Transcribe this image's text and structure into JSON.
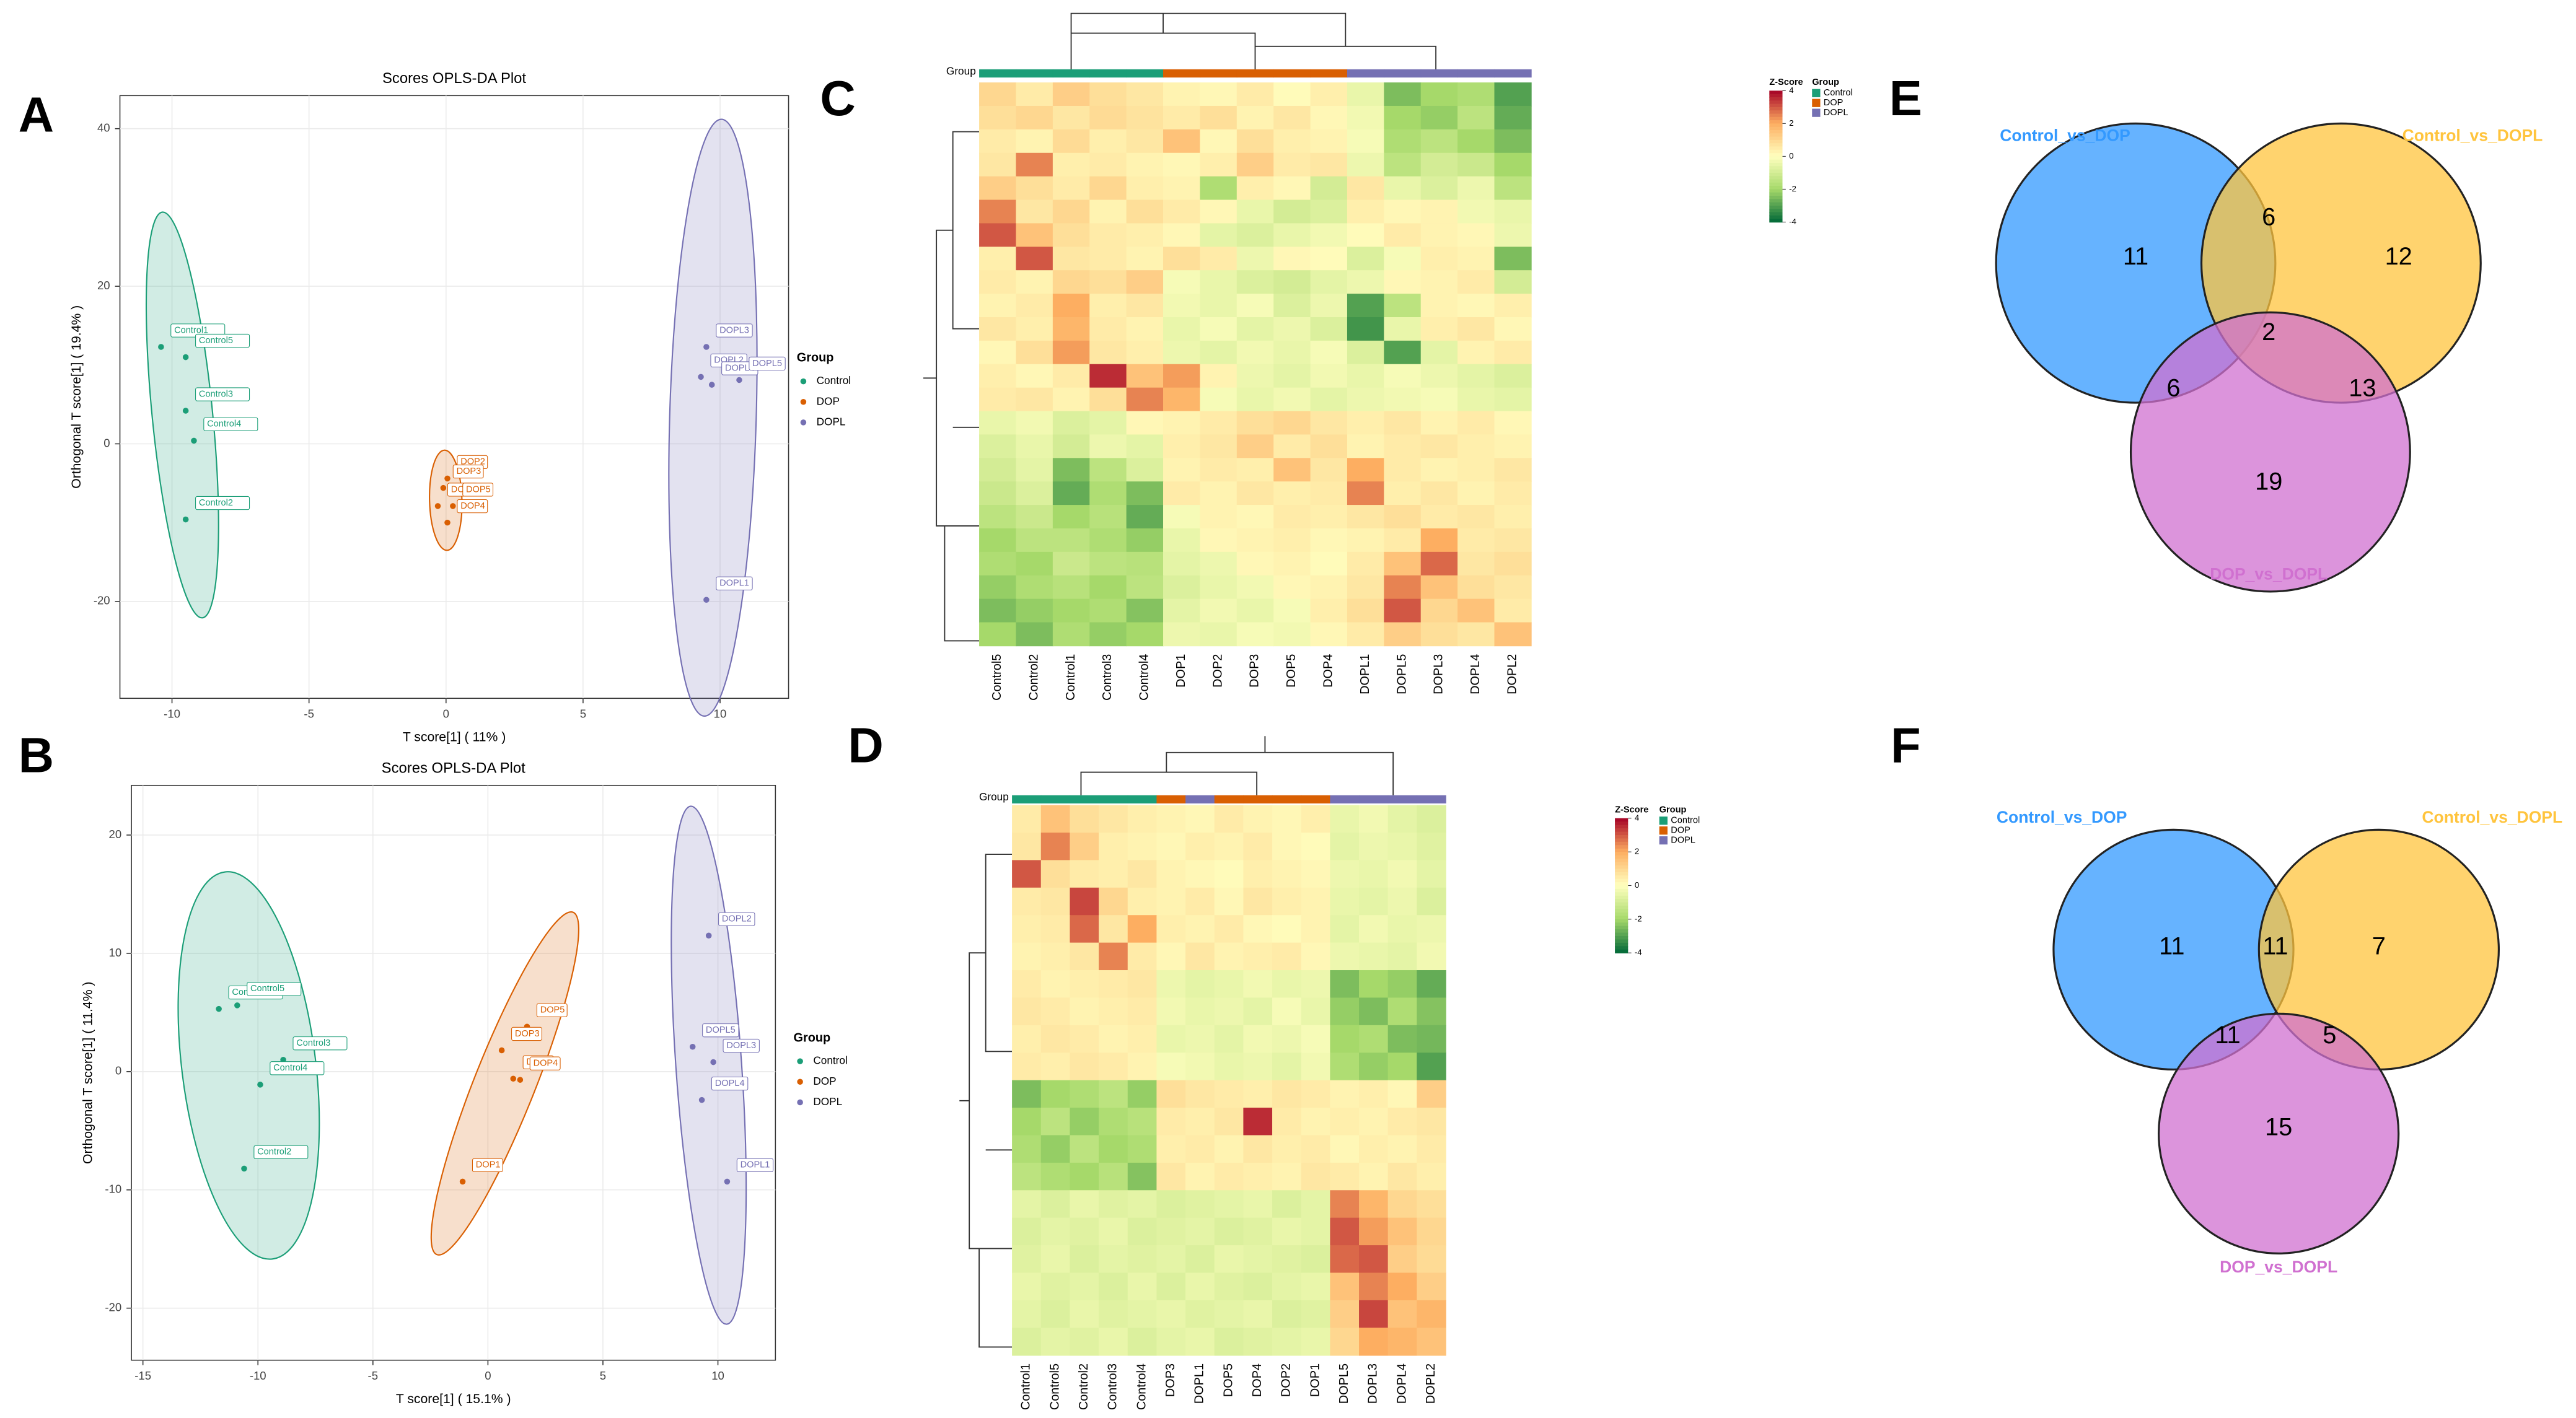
{
  "chart_data": [
    {
      "type": "scatter",
      "panel": "A",
      "title": "Scores OPLS-DA Plot",
      "xlabel": "T score[1] ( 11% )",
      "ylabel": "Orthogonal T score[1] ( 19.4% )",
      "xlim": [
        -11.9,
        12.5
      ],
      "ylim": [
        -32.3,
        44.2
      ],
      "xticks": [
        -10,
        -5,
        0,
        5,
        10
      ],
      "yticks": [
        -20,
        0,
        20,
        40
      ],
      "grid": true,
      "legend_title": "Group",
      "series": [
        {
          "name": "Control",
          "color": "#1b9e77",
          "x": [
            -10.4,
            -9.5,
            -9.5,
            -9.2,
            -9.5
          ],
          "values": [
            12.3,
            11,
            4.2,
            0.4,
            -9.6
          ],
          "point_labels": [
            "Control1",
            "Control5",
            "Control3",
            "Control4",
            "Control2"
          ]
        },
        {
          "name": "DOP",
          "color": "#d95f02",
          "x": [
            0.05,
            -0.1,
            -0.3,
            0.25,
            0.05
          ],
          "values": [
            -4.4,
            -5.6,
            -7.9,
            -7.9,
            -10
          ],
          "point_labels": [
            "DOP2",
            "DOP3",
            "DOP1",
            "DOP5",
            "DOP4"
          ]
        },
        {
          "name": "DOPL",
          "color": "#7570b3",
          "x": [
            9.5,
            9.3,
            9.7,
            10.7,
            9.5
          ],
          "values": [
            12.3,
            8.5,
            7.5,
            8.1,
            -19.8
          ],
          "point_labels": [
            "DOPL3",
            "DOPL2",
            "DOPL4",
            "DOPL5",
            "DOPL1"
          ]
        }
      ]
    },
    {
      "type": "heatmap",
      "panel": "C",
      "group_label": "Group",
      "zlabel": "Z-Score",
      "legend_title": "Group",
      "zlim": [
        -4,
        4
      ],
      "zticks": [
        4,
        2,
        0,
        -2,
        -4
      ],
      "groups": [
        {
          "name": "Control",
          "color": "#1b9e77"
        },
        {
          "name": "DOP",
          "color": "#d95f02"
        },
        {
          "name": "DOPL",
          "color": "#7570b3"
        }
      ],
      "columns": [
        "Control5",
        "Control2",
        "Control1",
        "Control3",
        "Control4",
        "DOP1",
        "DOP2",
        "DOP3",
        "DOP5",
        "DOP4",
        "DOPL1",
        "DOPL5",
        "DOPL3",
        "DOPL4",
        "DOPL2"
      ],
      "column_groups": [
        0,
        0,
        0,
        0,
        0,
        1,
        1,
        1,
        1,
        1,
        2,
        2,
        2,
        2,
        2
      ],
      "values": [
        [
          1,
          0.5,
          1.2,
          0.8,
          0.6,
          0.3,
          0.2,
          0.5,
          0.1,
          0.4,
          -0.5,
          -2.5,
          -2,
          -1.8,
          -3
        ],
        [
          0.8,
          1,
          0.6,
          0.9,
          0.7,
          0.5,
          0.8,
          0.3,
          0.6,
          0.2,
          -0.3,
          -2,
          -2.2,
          -1.5,
          -2.8
        ],
        [
          0.5,
          0.3,
          0.9,
          0.4,
          0.6,
          1.5,
          0.2,
          0.8,
          0.4,
          0.3,
          -0.2,
          -1.8,
          -1.5,
          -2,
          -2.5
        ],
        [
          0.6,
          2.5,
          0.4,
          0.5,
          0.3,
          0.2,
          0.4,
          1.2,
          0.5,
          0.6,
          -0.4,
          -1.5,
          -1,
          -1.2,
          -2
        ],
        [
          1.2,
          0.8,
          0.5,
          1,
          0.4,
          0.3,
          -1.8,
          0.4,
          0.2,
          -1,
          0.6,
          -0.5,
          -0.8,
          -0.4,
          -1.5
        ],
        [
          2.5,
          0.6,
          1,
          0.3,
          0.8,
          0.5,
          0.2,
          -0.5,
          -1,
          -0.8,
          0.4,
          0.2,
          0.3,
          -0.3,
          -0.5
        ],
        [
          3,
          1.5,
          0.8,
          0.5,
          0.4,
          0.2,
          -0.6,
          -0.8,
          -0.5,
          -0.3,
          0.1,
          0.5,
          0.3,
          0.2,
          -0.4
        ],
        [
          0.4,
          3,
          0.6,
          0.5,
          0.3,
          0.8,
          0.5,
          -0.4,
          0.2,
          0.1,
          -0.8,
          -0.2,
          0.4,
          0.3,
          -2.5
        ],
        [
          0.5,
          0.3,
          1,
          0.8,
          1.2,
          -0.2,
          -0.5,
          -0.8,
          -1,
          -0.6,
          -0.4,
          0.2,
          0.3,
          0.5,
          -1
        ],
        [
          0.3,
          0.5,
          2,
          0.4,
          0.6,
          -0.3,
          -0.5,
          -0.2,
          -0.8,
          -0.4,
          -3,
          -1.5,
          0.3,
          0.2,
          0.4
        ],
        [
          0.6,
          0.4,
          1.8,
          0.5,
          0.3,
          -0.5,
          -0.2,
          -0.6,
          -0.4,
          -0.8,
          -3.2,
          -0.5,
          0.4,
          0.6,
          0.2
        ],
        [
          0.2,
          0.8,
          2.2,
          0.6,
          0.4,
          -0.4,
          -0.6,
          -0.3,
          -0.5,
          -0.2,
          -0.8,
          -3,
          -0.6,
          0.3,
          0.5
        ],
        [
          0.4,
          0.2,
          0.5,
          3.5,
          1.5,
          2.2,
          0.3,
          -0.4,
          -0.6,
          -0.3,
          -0.5,
          -0.2,
          -0.4,
          -0.6,
          -0.8
        ],
        [
          0.5,
          0.6,
          0.3,
          0.8,
          2.5,
          1.8,
          -0.2,
          -0.5,
          -0.3,
          -0.6,
          -0.4,
          -0.3,
          -0.2,
          -0.5,
          -0.6
        ],
        [
          -0.5,
          -0.3,
          -0.8,
          -0.6,
          0.2,
          0.3,
          0.5,
          0.8,
          1,
          0.6,
          0.4,
          0.6,
          0.3,
          0.5,
          0.2
        ],
        [
          -0.8,
          -0.5,
          -1,
          -0.4,
          -0.6,
          0.4,
          0.6,
          1.2,
          0.5,
          0.8,
          0.3,
          0.5,
          0.6,
          0.4,
          0.3
        ],
        [
          -1,
          -0.6,
          -2.5,
          -1.5,
          -0.8,
          0.3,
          0.5,
          0.4,
          1.5,
          0.6,
          2,
          0.5,
          0.3,
          0.4,
          0.6
        ],
        [
          -1.2,
          -0.8,
          -2.8,
          -1.8,
          -2.5,
          0.5,
          0.3,
          0.6,
          0.4,
          0.5,
          2.5,
          0.4,
          0.6,
          0.3,
          0.5
        ],
        [
          -1.5,
          -1.2,
          -2,
          -1.6,
          -2.8,
          -0.2,
          0.3,
          0.2,
          0.5,
          0.4,
          0.6,
          0.8,
          0.5,
          0.6,
          0.4
        ],
        [
          -2,
          -1.5,
          -1.5,
          -1.8,
          -2.2,
          -0.5,
          0.2,
          0.3,
          0.4,
          0.2,
          0.3,
          0.5,
          2,
          0.5,
          0.6
        ],
        [
          -1.8,
          -2,
          -1.2,
          -1.5,
          -1.6,
          -0.6,
          -0.4,
          0.2,
          0.3,
          0.1,
          0.5,
          1.5,
          2.8,
          0.6,
          0.8
        ],
        [
          -2.2,
          -1.8,
          -1.6,
          -2,
          -1.5,
          -0.8,
          -0.5,
          -0.3,
          0.2,
          0.3,
          0.6,
          2.5,
          1.5,
          0.8,
          0.6
        ],
        [
          -2.5,
          -2.2,
          -2,
          -1.8,
          -2.4,
          -0.6,
          -0.3,
          -0.5,
          -0.2,
          0.4,
          0.8,
          3,
          1,
          1.5,
          0.5
        ],
        [
          -2,
          -2.5,
          -1.8,
          -2.2,
          -2,
          -0.4,
          -0.5,
          -0.2,
          -0.3,
          0.2,
          0.5,
          1.2,
          0.8,
          0.6,
          1.5
        ]
      ]
    },
    {
      "type": "venn",
      "panel": "E",
      "sets": [
        {
          "name": "Control_vs_DOP",
          "color": "#3399ff"
        },
        {
          "name": "Control_vs_DOPL",
          "color": "#ffc43d"
        },
        {
          "name": "DOP_vs_DOPL",
          "color": "#d070d0"
        }
      ],
      "regions": [
        {
          "sets": [
            0
          ],
          "value": 11
        },
        {
          "sets": [
            0,
            1
          ],
          "value": 6
        },
        {
          "sets": [
            1
          ],
          "value": 12
        },
        {
          "sets": [
            0,
            1,
            2
          ],
          "value": 2
        },
        {
          "sets": [
            0,
            2
          ],
          "value": 6
        },
        {
          "sets": [
            1,
            2
          ],
          "value": 13
        },
        {
          "sets": [
            2
          ],
          "value": 19
        }
      ]
    },
    {
      "type": "scatter",
      "panel": "B",
      "title": "Scores OPLS-DA Plot",
      "xlabel": "T score[1] ( 15.1% )",
      "ylabel": "Orthogonal T score[1] ( 11.4% )",
      "xlim": [
        -15.5,
        12.5
      ],
      "ylim": [
        -24.4,
        24.2
      ],
      "xticks": [
        -15,
        -10,
        -5,
        0,
        5,
        10
      ],
      "yticks": [
        -20,
        -10,
        0,
        10,
        20
      ],
      "grid": true,
      "legend_title": "Group",
      "series": [
        {
          "name": "Control",
          "color": "#1b9e77",
          "x": [
            -11.7,
            -10.9,
            -8.9,
            -9.9,
            -10.6
          ],
          "values": [
            5.3,
            5.6,
            1,
            -1.1,
            -8.2
          ],
          "point_labels": [
            "Control1",
            "Control5",
            "Control3",
            "Control4",
            "Control2"
          ]
        },
        {
          "name": "DOP",
          "color": "#d95f02",
          "x": [
            1.7,
            0.6,
            1.1,
            1.4,
            -1.1
          ],
          "values": [
            3.8,
            1.8,
            -0.6,
            -0.7,
            -9.3
          ],
          "point_labels": [
            "DOP5",
            "DOP3",
            "DOP2",
            "DOP4",
            "DOP1"
          ]
        },
        {
          "name": "DOPL",
          "color": "#7570b3",
          "x": [
            9.6,
            8.9,
            9.8,
            9.3,
            10.4
          ],
          "values": [
            11.5,
            2.1,
            0.8,
            -2.4,
            -9.3
          ],
          "point_labels": [
            "DOPL2",
            "DOPL5",
            "DOPL3",
            "DOPL4",
            "DOPL1"
          ]
        }
      ]
    },
    {
      "type": "heatmap",
      "panel": "D",
      "group_label": "Group",
      "zlabel": "Z-Score",
      "legend_title": "Group",
      "zlim": [
        -4,
        4
      ],
      "zticks": [
        4,
        2,
        0,
        -2,
        -4
      ],
      "groups": [
        {
          "name": "Control",
          "color": "#1b9e77"
        },
        {
          "name": "DOP",
          "color": "#d95f02"
        },
        {
          "name": "DOPL",
          "color": "#7570b3"
        }
      ],
      "columns": [
        "Control1",
        "Control5",
        "Control2",
        "Control3",
        "Control4",
        "DOP3",
        "DOPL1",
        "DOP5",
        "DOP4",
        "DOP2",
        "DOP1",
        "DOPL5",
        "DOPL3",
        "DOPL4",
        "DOPL2"
      ],
      "column_groups": [
        0,
        0,
        0,
        0,
        0,
        1,
        2,
        1,
        1,
        1,
        1,
        2,
        2,
        2,
        2
      ],
      "values": [
        [
          0.5,
          1.5,
          0.8,
          0.6,
          0.4,
          0.3,
          0.2,
          0.5,
          0.3,
          0.2,
          0.4,
          -0.5,
          -0.3,
          -0.6,
          -0.8
        ],
        [
          0.6,
          2.5,
          1.2,
          0.4,
          0.3,
          0.2,
          0.4,
          0.3,
          0.5,
          0.2,
          0.1,
          -0.6,
          -0.4,
          -0.5,
          -0.7
        ],
        [
          3,
          0.8,
          0.5,
          0.4,
          0.6,
          0.3,
          0.2,
          0.1,
          0.4,
          0.3,
          0.2,
          -0.4,
          -0.5,
          -0.3,
          -0.6
        ],
        [
          0.5,
          0.6,
          3.2,
          1,
          0.4,
          0.3,
          0.5,
          0.2,
          0.6,
          0.4,
          0.3,
          -0.5,
          -0.6,
          -0.4,
          -0.8
        ],
        [
          0.4,
          0.5,
          2.8,
          0.6,
          2,
          0.4,
          0.3,
          0.5,
          0.2,
          0.1,
          0.3,
          -0.6,
          -0.3,
          -0.5,
          -0.4
        ],
        [
          0.3,
          0.4,
          0.6,
          2.5,
          0.5,
          0.2,
          0.6,
          0.3,
          0.4,
          0.5,
          0.2,
          -0.4,
          -0.5,
          -0.6,
          -0.3
        ],
        [
          0.5,
          0.3,
          0.4,
          0.5,
          0.6,
          -0.4,
          -0.6,
          -0.5,
          -0.3,
          -0.5,
          -0.4,
          -2.5,
          -2,
          -2.2,
          -2.8
        ],
        [
          0.6,
          0.5,
          0.3,
          0.4,
          0.5,
          -0.3,
          -0.5,
          -0.4,
          -0.6,
          -0.2,
          -0.5,
          -2.2,
          -2.5,
          -1.8,
          -2.4
        ],
        [
          0.4,
          0.6,
          0.5,
          0.3,
          0.4,
          -0.5,
          -0.4,
          -0.6,
          -0.3,
          -0.4,
          -0.2,
          -2,
          -1.8,
          -2.5,
          -2.6
        ],
        [
          0.5,
          0.4,
          0.6,
          0.5,
          0.3,
          -0.2,
          -0.3,
          -0.5,
          -0.4,
          -0.6,
          -0.3,
          -1.8,
          -2.2,
          -2,
          -3
        ],
        [
          -2.5,
          -2,
          -1.8,
          -1.5,
          -2.2,
          0.8,
          0.6,
          0.5,
          0.4,
          0.6,
          0.5,
          0.3,
          0.4,
          0.2,
          1.2
        ],
        [
          -2,
          -1.5,
          -2.2,
          -1.8,
          -1.6,
          0.5,
          0.4,
          0.6,
          3.5,
          0.5,
          0.3,
          0.4,
          0.3,
          0.5,
          0.6
        ],
        [
          -1.8,
          -2.2,
          -1.5,
          -2,
          -1.8,
          0.4,
          0.5,
          0.3,
          0.6,
          0.4,
          0.5,
          0.2,
          0.4,
          0.3,
          0.5
        ],
        [
          -1.5,
          -1.8,
          -2,
          -1.6,
          -2.4,
          0.6,
          0.3,
          0.5,
          0.4,
          0.3,
          0.6,
          0.5,
          0.3,
          0.6,
          0.4
        ],
        [
          -0.6,
          -0.8,
          -0.5,
          -0.7,
          -0.6,
          -0.8,
          -0.7,
          -0.6,
          -0.5,
          -0.8,
          -0.6,
          2.5,
          1.8,
          1,
          0.8
        ],
        [
          -0.8,
          -0.6,
          -0.7,
          -0.5,
          -0.8,
          -0.7,
          -0.6,
          -0.8,
          -0.7,
          -0.5,
          -0.6,
          3,
          2.2,
          1.5,
          1
        ],
        [
          -0.7,
          -0.5,
          -0.8,
          -0.6,
          -0.7,
          -0.6,
          -0.8,
          -0.5,
          -0.6,
          -0.7,
          -0.8,
          2.8,
          3,
          1.2,
          0.9
        ],
        [
          -0.5,
          -0.7,
          -0.6,
          -0.8,
          -0.5,
          -0.8,
          -0.5,
          -0.7,
          -0.8,
          -0.6,
          -0.5,
          1.5,
          2.5,
          2,
          1.2
        ],
        [
          -0.6,
          -0.8,
          -0.5,
          -0.7,
          -0.6,
          -0.5,
          -0.7,
          -0.6,
          -0.5,
          -0.8,
          -0.7,
          1.2,
          3.2,
          1.5,
          1.8
        ],
        [
          -0.8,
          -0.6,
          -0.7,
          -0.5,
          -0.8,
          -0.6,
          -0.5,
          -0.8,
          -0.7,
          -0.6,
          -0.5,
          1,
          2,
          1.8,
          1.5
        ]
      ]
    },
    {
      "type": "venn",
      "panel": "F",
      "sets": [
        {
          "name": "Control_vs_DOP",
          "color": "#3399ff"
        },
        {
          "name": "Control_vs_DOPL",
          "color": "#ffc43d"
        },
        {
          "name": "DOP_vs_DOPL",
          "color": "#d070d0"
        }
      ],
      "regions": [
        {
          "sets": [
            0
          ],
          "value": 11
        },
        {
          "sets": [
            0,
            1
          ],
          "value": 11
        },
        {
          "sets": [
            1
          ],
          "value": 7
        },
        {
          "sets": [
            0,
            2
          ],
          "value": 11
        },
        {
          "sets": [
            1,
            2
          ],
          "value": 5
        },
        {
          "sets": [
            2
          ],
          "value": 15
        }
      ]
    }
  ]
}
